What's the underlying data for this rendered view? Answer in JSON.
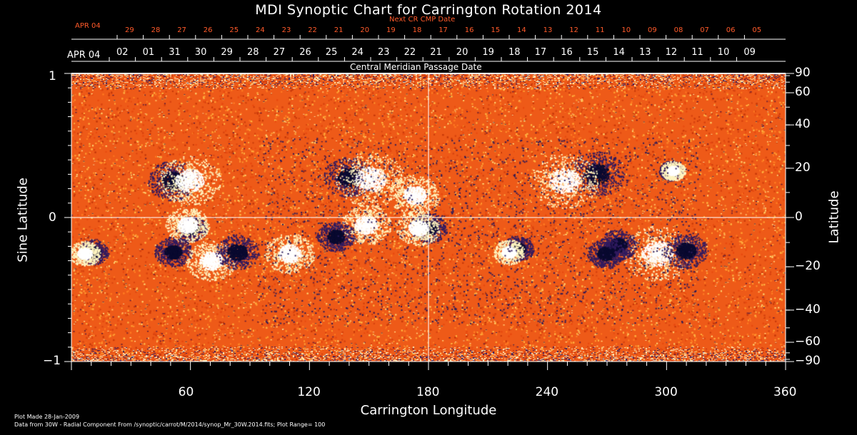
{
  "title": "MDI Synoptic Chart for Carrington Rotation 2014",
  "next_cr_label": "Next CR CMP Date",
  "next_cr_start": "APR 04",
  "next_cr_dates": [
    "29",
    "28",
    "27",
    "26",
    "25",
    "24",
    "23",
    "22",
    "21",
    "20",
    "19",
    "18",
    "17",
    "16",
    "15",
    "14",
    "13",
    "12",
    "11",
    "10",
    "09",
    "08",
    "07",
    "06",
    "05"
  ],
  "cmp_start": "APR 04",
  "cmp_dates": [
    "02",
    "01",
    "31",
    "30",
    "29",
    "28",
    "27",
    "26",
    "25",
    "24",
    "23",
    "22",
    "21",
    "20",
    "19",
    "18",
    "17",
    "16",
    "15",
    "14",
    "13",
    "12",
    "11",
    "10",
    "09"
  ],
  "cmp_label": "Central Meridian Passage Date",
  "left_axis": {
    "title": "Sine Latitude",
    "ticks": [
      "1",
      "0",
      "−1"
    ]
  },
  "right_axis": {
    "title": "Latitude",
    "ticks": [
      "90",
      "60",
      "40",
      "20",
      "0",
      "−20",
      "−40",
      "−60",
      "−90"
    ]
  },
  "bottom_axis": {
    "title": "Carrington Longitude",
    "ticks": [
      "60",
      "120",
      "180",
      "240",
      "300",
      "360"
    ]
  },
  "footer": {
    "made": "Plot Made 28-Jan-2009",
    "source": "Data from 30W - Radial Component From /synoptic/carrot/M/2014/synop_Mr_30W.2014.fits; Plot Range=  100"
  },
  "colors": {
    "background": "#000000",
    "field": "#f0601c",
    "accent": "#ff5a2a",
    "positive": "#ffffff",
    "negative": "#1a1a66"
  }
}
